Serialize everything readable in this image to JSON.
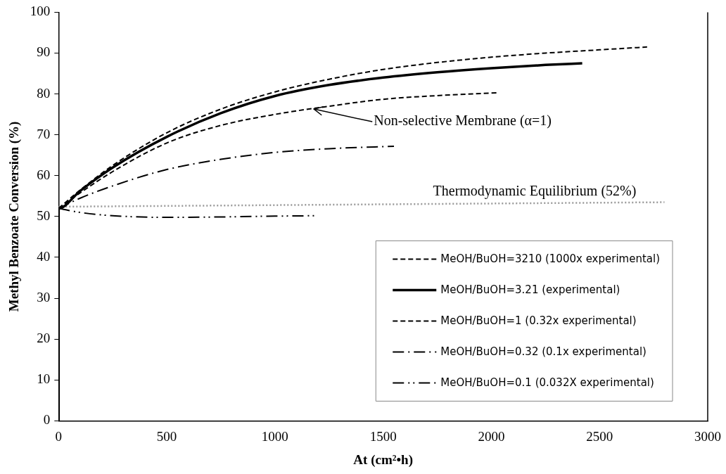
{
  "chart_data": {
    "type": "line",
    "xlabel": "At (cm²•h)",
    "ylabel": "Methyl Benzoate Conversion (%)",
    "xlim": [
      0,
      3000
    ],
    "xticks": [
      0,
      500,
      1000,
      1500,
      2000,
      2500,
      3000
    ],
    "ylim": [
      0,
      100
    ],
    "yticks": [
      0,
      10,
      20,
      30,
      40,
      50,
      60,
      70,
      80,
      90,
      100
    ],
    "grid": false,
    "legend": "bottom right",
    "marker": "none",
    "series": [
      {
        "name": "MeOH/BuOH=3210 (1000x experimental)",
        "color": "#000000",
        "line_style": "dashed",
        "x": [
          0,
          100,
          250,
          500,
          750,
          1000,
          1250,
          1500,
          1750,
          2000,
          2250,
          2500,
          2720
        ],
        "values": [
          52,
          56.5,
          62.5,
          70.5,
          76.3,
          80.5,
          83.6,
          86,
          87.7,
          89,
          90,
          90.8,
          91.5
        ]
      },
      {
        "name": "MeOH/BuOH=3.21 (experimental)",
        "color": "#000000",
        "line_style": "solid",
        "x": [
          0,
          0,
          100,
          250,
          500,
          750,
          1000,
          1250,
          1500,
          1750,
          2000,
          2250,
          2420
        ],
        "values": [
          0,
          52,
          56.3,
          62,
          69.5,
          75.3,
          79.5,
          82.2,
          84,
          85.3,
          86.3,
          87.1,
          87.5
        ]
      },
      {
        "name": "MeOH/BuOH=1 (0.32x experimental)",
        "color": "#000000",
        "line_style": "dashed",
        "x": [
          0,
          100,
          250,
          500,
          750,
          1000,
          1250,
          1500,
          1750,
          2030
        ],
        "values": [
          52,
          55.8,
          61,
          68,
          72.3,
          75,
          77,
          78.7,
          79.6,
          80.3
        ]
      },
      {
        "name": "MeOH/BuOH=0.32 (0.1x experimental)",
        "color": "#000000",
        "line_style": "dashdot",
        "x": [
          0,
          100,
          250,
          500,
          750,
          1000,
          1250,
          1550
        ],
        "values": [
          52,
          54.5,
          57.5,
          61.5,
          64,
          65.7,
          66.6,
          67.2
        ]
      },
      {
        "name": "MeOH/BuOH=0.1 (0.032X experimental)",
        "color": "#000000",
        "line_style": "dashdotdot",
        "x": [
          0,
          100,
          250,
          500,
          750,
          1000,
          1190
        ],
        "values": [
          52,
          51,
          50.2,
          49.8,
          49.9,
          50.1,
          50.2
        ]
      },
      {
        "color": "#999999",
        "line_style": "dotted",
        "x": [
          0,
          2800
        ],
        "values": [
          52.4,
          53.5
        ]
      }
    ],
    "annotations": [
      {
        "text": "Non-selective Membrane (α=1)",
        "x": 1180,
        "y": 76.3
      },
      {
        "text": "Thermodynamic Equilibrium (52%)",
        "x": 2200,
        "y": 53.3
      }
    ]
  }
}
